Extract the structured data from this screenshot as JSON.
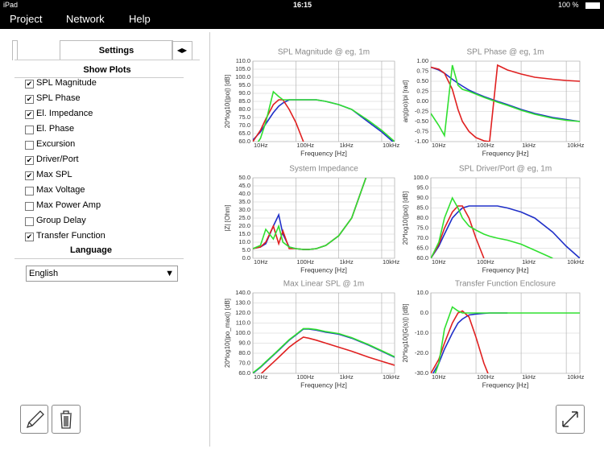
{
  "status_bar": {
    "device": "iPad",
    "time": "16:15",
    "battery": "100 %"
  },
  "menu": {
    "items": [
      "Project",
      "Network",
      "Help"
    ]
  },
  "sidebar": {
    "tab": "Settings",
    "show_plots": {
      "title": "Show Plots",
      "items": [
        {
          "label": "SPL Magnitude",
          "checked": true
        },
        {
          "label": "SPL Phase",
          "checked": true
        },
        {
          "label": "El. Impedance",
          "checked": true
        },
        {
          "label": "El. Phase",
          "checked": false
        },
        {
          "label": "Excursion",
          "checked": false
        },
        {
          "label": "Driver/Port",
          "checked": true
        },
        {
          "label": "Max SPL",
          "checked": true
        },
        {
          "label": "Max Voltage",
          "checked": false
        },
        {
          "label": "Max Power Amp",
          "checked": false
        },
        {
          "label": "Group Delay",
          "checked": false
        },
        {
          "label": "Transfer Function",
          "checked": true
        }
      ]
    },
    "language": {
      "title": "Language",
      "selected": "English"
    }
  },
  "chart_data": [
    {
      "type": "line",
      "title": "SPL Magnitude @ eg, 1m",
      "x_label": "Frequency [Hz]",
      "y_label": "20*log10(|po|) [dB]",
      "xscale": "log",
      "grid": true,
      "x": [
        10,
        15,
        20,
        30,
        40,
        50,
        70,
        100,
        150,
        200,
        300,
        500,
        1000,
        2000,
        5000,
        10000,
        20000
      ],
      "xlim": [
        10,
        20000
      ],
      "xticks": [
        {
          "value": 10,
          "label": "10Hz"
        },
        {
          "value": 100,
          "label": "100Hz"
        },
        {
          "value": 1000,
          "label": "1kHz"
        },
        {
          "value": 10000,
          "label": "10kHz"
        }
      ],
      "ylim": [
        60,
        110
      ],
      "yticks": [
        {
          "value": 60,
          "label": "60.0"
        },
        {
          "value": 65,
          "label": "65.0"
        },
        {
          "value": 70,
          "label": "70.0"
        },
        {
          "value": 75,
          "label": "75.0"
        },
        {
          "value": 80,
          "label": "80.0"
        },
        {
          "value": 85,
          "label": "85.0"
        },
        {
          "value": 90,
          "label": "90.0"
        },
        {
          "value": 95,
          "label": "95.0"
        },
        {
          "value": 100,
          "label": "100.0"
        },
        {
          "value": 105,
          "label": "105.0"
        },
        {
          "value": 110,
          "label": "110.0"
        }
      ],
      "series": [
        {
          "color": "#2030c8",
          "values": [
            61,
            66,
            71,
            78,
            82,
            84,
            86,
            86,
            86,
            86,
            86,
            85,
            83,
            80,
            72,
            66,
            59
          ]
        },
        {
          "color": "#e02020",
          "values": [
            60,
            67,
            74,
            83,
            86,
            86,
            80,
            72,
            60,
            55,
            null,
            null,
            null,
            null,
            null,
            null,
            null
          ]
        },
        {
          "color": "#30e030",
          "values": [
            55,
            62,
            72,
            91,
            88,
            86,
            86,
            86,
            86,
            86,
            86,
            85,
            83,
            80,
            73,
            67,
            60
          ]
        }
      ]
    },
    {
      "type": "line",
      "title": "SPL Phase @ eg, 1m",
      "x_label": "Frequency [Hz]",
      "y_label": "arg(po)/pi [rad]",
      "xscale": "log",
      "grid": true,
      "x": [
        10,
        15,
        20,
        30,
        40,
        50,
        70,
        100,
        150,
        200,
        300,
        500,
        1000,
        2000,
        5000,
        10000,
        20000
      ],
      "xlim": [
        10,
        20000
      ],
      "xticks": [
        {
          "value": 10,
          "label": "10Hz"
        },
        {
          "value": 100,
          "label": "100Hz"
        },
        {
          "value": 1000,
          "label": "1kHz"
        },
        {
          "value": 10000,
          "label": "10kHz"
        }
      ],
      "ylim": [
        -1,
        1
      ],
      "yticks": [
        {
          "value": -1,
          "label": "-1.00"
        },
        {
          "value": -0.75,
          "label": "-0.75"
        },
        {
          "value": -0.5,
          "label": "-0.50"
        },
        {
          "value": -0.25,
          "label": "-0.25"
        },
        {
          "value": 0,
          "label": "0.00"
        },
        {
          "value": 0.25,
          "label": "0.25"
        },
        {
          "value": 0.5,
          "label": "0.50"
        },
        {
          "value": 0.75,
          "label": "0.75"
        },
        {
          "value": 1,
          "label": "1.00"
        }
      ],
      "series": [
        {
          "color": "#2030c8",
          "values": [
            0.85,
            0.78,
            0.7,
            0.55,
            0.45,
            0.38,
            0.28,
            0.2,
            0.12,
            0.07,
            0,
            -0.08,
            -0.2,
            -0.3,
            -0.4,
            -0.45,
            -0.5
          ]
        },
        {
          "color": "#e02020",
          "values": [
            0.85,
            0.8,
            0.7,
            0.3,
            -0.2,
            -0.5,
            -0.75,
            -0.9,
            -0.98,
            -1,
            0.9,
            0.78,
            0.68,
            0.6,
            0.55,
            0.52,
            0.5
          ]
        },
        {
          "color": "#30e030",
          "values": [
            -0.3,
            -0.6,
            -0.85,
            0.9,
            0.4,
            0.3,
            0.25,
            0.18,
            0.1,
            0.05,
            -0.02,
            -0.1,
            -0.22,
            -0.32,
            -0.42,
            -0.47,
            -0.5
          ]
        }
      ]
    },
    {
      "type": "line",
      "title": "System Impedance",
      "x_label": "Frequency [Hz]",
      "y_label": "|Z| [Ohm]",
      "xscale": "log",
      "grid": true,
      "x": [
        10,
        15,
        20,
        30,
        40,
        50,
        70,
        100,
        150,
        200,
        300,
        500,
        1000,
        2000,
        5000,
        10000,
        20000
      ],
      "xlim": [
        10,
        20000
      ],
      "xticks": [
        {
          "value": 10,
          "label": "10Hz"
        },
        {
          "value": 100,
          "label": "100Hz"
        },
        {
          "value": 1000,
          "label": "1kHz"
        },
        {
          "value": 10000,
          "label": "10kHz"
        }
      ],
      "ylim": [
        0,
        50
      ],
      "yticks": [
        {
          "value": 0,
          "label": "0.0"
        },
        {
          "value": 5,
          "label": "5.0"
        },
        {
          "value": 10,
          "label": "10.0"
        },
        {
          "value": 15,
          "label": "15.0"
        },
        {
          "value": 20,
          "label": "20.0"
        },
        {
          "value": 25,
          "label": "25.0"
        },
        {
          "value": 30,
          "label": "30.0"
        },
        {
          "value": 35,
          "label": "35.0"
        },
        {
          "value": 40,
          "label": "40.0"
        },
        {
          "value": 45,
          "label": "45.0"
        },
        {
          "value": 50,
          "label": "50.0"
        }
      ],
      "series": [
        {
          "color": "#2030c8",
          "values": [
            6,
            7,
            9,
            20,
            27,
            15,
            7,
            6,
            5.5,
            5.5,
            6,
            8,
            14,
            25,
            55,
            null,
            null
          ]
        },
        {
          "color": "#e02020",
          "values": [
            6,
            7,
            10,
            20,
            9,
            17,
            6,
            6,
            5.5,
            5.5,
            6,
            8,
            14,
            25,
            55,
            null,
            null
          ]
        },
        {
          "color": "#30e030",
          "values": [
            6,
            8,
            18,
            12,
            20,
            10,
            7,
            6,
            5.5,
            5.5,
            6,
            8,
            14,
            25,
            55,
            null,
            null
          ]
        }
      ]
    },
    {
      "type": "line",
      "title": "SPL Driver/Port @ eg, 1m",
      "x_label": "Frequency [Hz]",
      "y_label": "20*log10(|po|) [dB]",
      "xscale": "log",
      "grid": true,
      "x": [
        10,
        15,
        20,
        30,
        40,
        50,
        70,
        100,
        150,
        200,
        300,
        500,
        1000,
        2000,
        5000,
        10000,
        20000
      ],
      "xlim": [
        10,
        20000
      ],
      "xticks": [
        {
          "value": 10,
          "label": "10Hz"
        },
        {
          "value": 100,
          "label": "100Hz"
        },
        {
          "value": 1000,
          "label": "1kHz"
        },
        {
          "value": 10000,
          "label": "10kHz"
        }
      ],
      "ylim": [
        60,
        100
      ],
      "yticks": [
        {
          "value": 60,
          "label": "60.0"
        },
        {
          "value": 65,
          "label": "65.0"
        },
        {
          "value": 70,
          "label": "70.0"
        },
        {
          "value": 75,
          "label": "75.0"
        },
        {
          "value": 80,
          "label": "80.0"
        },
        {
          "value": 85,
          "label": "85.0"
        },
        {
          "value": 90,
          "label": "90.0"
        },
        {
          "value": 95,
          "label": "95.0"
        },
        {
          "value": 100,
          "label": "100.0"
        }
      ],
      "series": [
        {
          "color": "#2030c8",
          "values": [
            60,
            66,
            72,
            80,
            83,
            85,
            86,
            86,
            86,
            86,
            86,
            85,
            83,
            80,
            73,
            66,
            60
          ]
        },
        {
          "color": "#e02020",
          "values": [
            60,
            67,
            75,
            83,
            86,
            86,
            80,
            70,
            60,
            null,
            null,
            null,
            null,
            null,
            null,
            null,
            null
          ]
        },
        {
          "color": "#30e030",
          "values": [
            60,
            68,
            80,
            90,
            85,
            80,
            76,
            74,
            72,
            71,
            70,
            69,
            67,
            64,
            60,
            null,
            null
          ]
        }
      ]
    },
    {
      "type": "line",
      "title": "Max Linear SPL @ 1m",
      "x_label": "Frequency [Hz]",
      "y_label": "20*log10(|po_max|) [dB]",
      "xscale": "log",
      "grid": true,
      "x": [
        10,
        15,
        20,
        30,
        40,
        50,
        70,
        100,
        150,
        200,
        300,
        500,
        1000,
        2000,
        5000,
        10000,
        20000
      ],
      "xlim": [
        10,
        20000
      ],
      "xticks": [
        {
          "value": 10,
          "label": "10Hz"
        },
        {
          "value": 100,
          "label": "100Hz"
        },
        {
          "value": 1000,
          "label": "1kHz"
        },
        {
          "value": 10000,
          "label": "10kHz"
        }
      ],
      "ylim": [
        60,
        140
      ],
      "yticks": [
        {
          "value": 60,
          "label": "60.0"
        },
        {
          "value": 70,
          "label": "70.0"
        },
        {
          "value": 80,
          "label": "80.0"
        },
        {
          "value": 90,
          "label": "90.0"
        },
        {
          "value": 100,
          "label": "100.0"
        },
        {
          "value": 110,
          "label": "110.0"
        },
        {
          "value": 120,
          "label": "120.0"
        },
        {
          "value": 130,
          "label": "130.0"
        },
        {
          "value": 140,
          "label": "140.0"
        }
      ],
      "series": [
        {
          "color": "#2030c8",
          "values": [
            60,
            66,
            71,
            78,
            83,
            87,
            93,
            98,
            104,
            104,
            103,
            101,
            99,
            95,
            88,
            82,
            76
          ]
        },
        {
          "color": "#e02020",
          "values": [
            54,
            59,
            64,
            71,
            76,
            80,
            86,
            91,
            96,
            95,
            93,
            90,
            86,
            82,
            76,
            72,
            68
          ]
        },
        {
          "color": "#30e030",
          "values": [
            60.5,
            66.5,
            71.5,
            78.5,
            83.5,
            87.5,
            93.5,
            98.5,
            104.5,
            104.5,
            103.5,
            101.5,
            99.5,
            95.5,
            88.5,
            82.5,
            76.5
          ]
        }
      ]
    },
    {
      "type": "line",
      "title": "Transfer Function Enclosure",
      "x_label": "Frequency [Hz]",
      "y_label": "20*log10(|G(s)|) [dB]",
      "xscale": "log",
      "grid": true,
      "x": [
        10,
        15,
        20,
        30,
        40,
        50,
        70,
        100,
        150,
        200,
        300,
        500,
        1000,
        2000,
        5000,
        10000,
        20000
      ],
      "xlim": [
        10,
        20000
      ],
      "xticks": [
        {
          "value": 10,
          "label": "10Hz"
        },
        {
          "value": 100,
          "label": "100Hz"
        },
        {
          "value": 1000,
          "label": "1kHz"
        },
        {
          "value": 10000,
          "label": "10kHz"
        }
      ],
      "ylim": [
        -30,
        10
      ],
      "yticks": [
        {
          "value": -30,
          "label": "-30.0"
        },
        {
          "value": -20,
          "label": "-20.0"
        },
        {
          "value": -10,
          "label": "-10.0"
        },
        {
          "value": 0,
          "label": "0.0"
        },
        {
          "value": 10,
          "label": "10.0"
        }
      ],
      "series": [
        {
          "color": "#2030c8",
          "values": [
            -32,
            -25,
            -18,
            -10,
            -5,
            -3,
            -1,
            -0.5,
            -0.2,
            0,
            0,
            0,
            null,
            null,
            null,
            null,
            null
          ]
        },
        {
          "color": "#e02020",
          "values": [
            -30,
            -23,
            -15,
            -5,
            0,
            1,
            -2,
            -12,
            -25,
            -32,
            null,
            null,
            null,
            null,
            null,
            null,
            null
          ]
        },
        {
          "color": "#30e030",
          "values": [
            -36,
            -25,
            -8,
            3,
            1,
            0,
            0,
            0,
            0,
            0,
            0,
            0,
            0,
            0,
            0,
            0,
            0
          ]
        }
      ]
    }
  ]
}
